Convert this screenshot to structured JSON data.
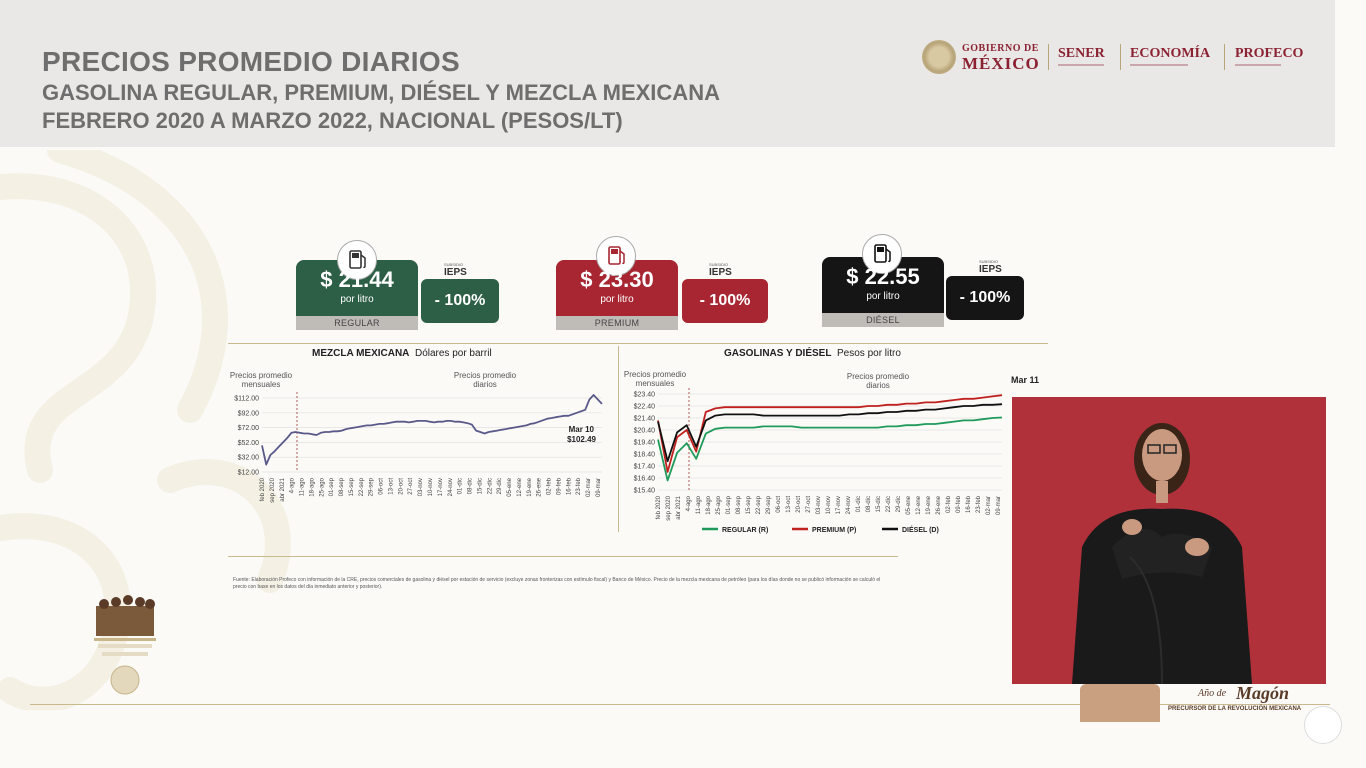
{
  "header": {
    "title": "PRECIOS PROMEDIO DIARIOS",
    "subtitle": "GASOLINA REGULAR, PREMIUM, DIÉSEL Y MEZCLA MEXICANA",
    "period": "FEBRERO 2020 A MARZO 2022, NACIONAL (PESOS/LT)"
  },
  "logos": {
    "gobierno_small": "GOBIERNO DE",
    "gobierno_big": "MÉXICO",
    "sener": "SENER",
    "economia": "ECONOMÍA",
    "profeco": "PROFECO"
  },
  "cards": [
    {
      "price": "$ 21.44",
      "unit": "por litro",
      "label": "REGULAR",
      "subsidio": "SUBSIDIO",
      "ieps": "IEPS",
      "badge": "- 100%",
      "color": "#2d5f46",
      "badge_color": "#2d5f46",
      "icon": "fuel-pump-icon"
    },
    {
      "price": "$ 23.30",
      "unit": "por litro",
      "label": "PREMIUM",
      "subsidio": "SUBSIDIO",
      "ieps": "IEPS",
      "badge": "- 100%",
      "color": "#a72632",
      "badge_color": "#a72632",
      "icon": "fuel-pump-icon"
    },
    {
      "price": "$ 22.55",
      "unit": "por litro",
      "label": "DIÉSEL",
      "subsidio": "SUBSIDIO",
      "ieps": "IEPS",
      "badge": "- 100%",
      "color": "#151515",
      "badge_color": "#151515",
      "icon": "fuel-pump-icon"
    }
  ],
  "chart_data": [
    {
      "type": "line",
      "title": "MEZCLA MEXICANA",
      "subtitle": "Dólares por barril",
      "note_left": "Precios promedio mensuales",
      "note_right": "Precios promedio diarios",
      "y_ticks": [
        "$112.00",
        "$92.00",
        "$72.00",
        "$52.00",
        "$32.00",
        "$12.00"
      ],
      "ylim": [
        12,
        112
      ],
      "x_ticks": [
        "feb 2020",
        "sep 2020",
        "abr 2021",
        "4-ago",
        "11-ago",
        "18-ago",
        "25-ago",
        "01-sep",
        "08-sep",
        "15-sep",
        "22-sep",
        "29-sep",
        "06-oct",
        "13-oct",
        "20-oct",
        "27-oct",
        "03-nov",
        "10-nov",
        "17-nov",
        "24-nov",
        "01-dic",
        "08-dic",
        "15-dic",
        "22-dic",
        "29-dic",
        "05-ene",
        "12-ene",
        "19-ene",
        "26-ene",
        "02-feb",
        "09-feb",
        "16-feb",
        "23-feb",
        "02-mar",
        "09-mar"
      ],
      "annotation_label": "Mar 10",
      "annotation_value": "$102.49",
      "series": [
        {
          "color": "#5a5a8a",
          "values": [
            48,
            22,
            35,
            40,
            46,
            52,
            58,
            65,
            66,
            65,
            64,
            64,
            63,
            62,
            65,
            66,
            66,
            67,
            67,
            68,
            70,
            71,
            72,
            73,
            74,
            75,
            75,
            76,
            77,
            77,
            78,
            79,
            80,
            80,
            80,
            79,
            80,
            81,
            81,
            81,
            80,
            79,
            80,
            80,
            81,
            81,
            80,
            80,
            79,
            78,
            76,
            68,
            66,
            64,
            66,
            67,
            68,
            69,
            70,
            71,
            72,
            73,
            74,
            75,
            77,
            78,
            80,
            82,
            84,
            85,
            86,
            87,
            88,
            88,
            90,
            92,
            94,
            96,
            110,
            116,
            110,
            104
          ]
        }
      ]
    },
    {
      "type": "line",
      "title": "GASOLINAS Y DIÉSEL",
      "subtitle": "Pesos por litro",
      "note_left": "Precios promedio mensuales",
      "note_right": "Precios promedio diarios",
      "y_ticks": [
        "$23.40",
        "$22.40",
        "$21.40",
        "$20.40",
        "$19.40",
        "$18.40",
        "$17.40",
        "$16.40",
        "$15.40"
      ],
      "ylim": [
        15.4,
        23.4
      ],
      "x_ticks": [
        "feb 2020",
        "sep 2020",
        "abr 2021",
        "4-ago",
        "11-ago",
        "18-ago",
        "25-ago",
        "01-sep",
        "08-sep",
        "15-sep",
        "22-sep",
        "29-sep",
        "06-oct",
        "13-oct",
        "20-oct",
        "27-oct",
        "03-nov",
        "10-nov",
        "17-nov",
        "24-nov",
        "01-dic",
        "08-dic",
        "15-dic",
        "22-dic",
        "29-dic",
        "05-ene",
        "12-ene",
        "19-ene",
        "26-ene",
        "02-feb",
        "09-feb",
        "16-feb",
        "23-feb",
        "02-mar",
        "09-mar"
      ],
      "annotation_label": "Mar 11",
      "legend": [
        "REGULAR (R)",
        "PREMIUM (P)",
        "DIÉSEL (D)"
      ],
      "series": [
        {
          "name": "REGULAR (R)",
          "color": "#1f9a5a",
          "values": [
            19.6,
            16.2,
            18.5,
            19.3,
            18.0,
            20.1,
            20.5,
            20.6,
            20.6,
            20.6,
            20.6,
            20.7,
            20.7,
            20.7,
            20.7,
            20.6,
            20.6,
            20.6,
            20.6,
            20.6,
            20.6,
            20.6,
            20.6,
            20.6,
            20.7,
            20.7,
            20.8,
            20.8,
            20.9,
            20.9,
            21.0,
            21.1,
            21.2,
            21.2,
            21.3,
            21.4,
            21.44
          ]
        },
        {
          "name": "PREMIUM (P)",
          "color": "#c0211f",
          "values": [
            21.2,
            16.9,
            19.8,
            20.4,
            18.6,
            21.9,
            22.2,
            22.3,
            22.3,
            22.3,
            22.3,
            22.3,
            22.3,
            22.3,
            22.3,
            22.3,
            22.3,
            22.3,
            22.3,
            22.3,
            22.3,
            22.3,
            22.4,
            22.4,
            22.5,
            22.5,
            22.6,
            22.6,
            22.7,
            22.7,
            22.8,
            22.9,
            23.0,
            23.0,
            23.1,
            23.2,
            23.3
          ]
        },
        {
          "name": "DIÉSEL (D)",
          "color": "#111111",
          "values": [
            21.1,
            17.8,
            20.2,
            20.8,
            19.0,
            21.2,
            21.6,
            21.7,
            21.7,
            21.7,
            21.7,
            21.6,
            21.6,
            21.6,
            21.6,
            21.6,
            21.6,
            21.6,
            21.6,
            21.6,
            21.7,
            21.7,
            21.8,
            21.8,
            21.9,
            21.9,
            22.0,
            22.0,
            22.1,
            22.1,
            22.2,
            22.3,
            22.4,
            22.4,
            22.5,
            22.5,
            22.55
          ]
        }
      ]
    }
  ],
  "footnote": "Fuente: Elaboración Profeco con información de la CRE, precios comerciales de gasolina y diésel por estación de servicio (excluye zonas fronterizas con estímulo fiscal) y Banco de México. Precio de la mezcla mexicana de petróleo (para los días donde no se publicó información se calculó el precio con base en los datos del día inmediato anterior y posterior).",
  "bottom": {
    "magon_small": "Año de",
    "magon_big": "Magón",
    "magon_sub": "PRECURSOR DE LA REVOLUCIÓN MEXICANA"
  }
}
